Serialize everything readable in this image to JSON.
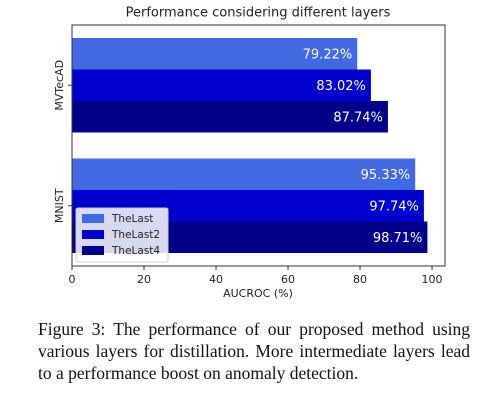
{
  "chart_data": {
    "type": "barh",
    "title": "Performance considering different layers",
    "xlabel": "AUCROC (%)",
    "categories": [
      "MVTecAD",
      "MNIST"
    ],
    "series": [
      {
        "name": "TheLast",
        "color": "#4169e1",
        "values": [
          79.22,
          95.33
        ],
        "value_labels": [
          "79.22%",
          "95.33%"
        ]
      },
      {
        "name": "TheLast2",
        "color": "#0000cd",
        "values": [
          83.02,
          97.74
        ],
        "value_labels": [
          "83.02%",
          "97.74%"
        ]
      },
      {
        "name": "TheLast4",
        "color": "#00008b",
        "values": [
          87.74,
          98.71
        ],
        "value_labels": [
          "87.74%",
          "98.71%"
        ]
      }
    ],
    "xlim": [
      0,
      103.6
    ],
    "xticks": [
      0,
      20,
      40,
      60,
      80,
      100
    ],
    "legend": "lower left"
  },
  "caption": "Figure 3: The performance of our proposed method using various layers for distillation. More intermediate layers lead to a performance boost on anomaly detection."
}
